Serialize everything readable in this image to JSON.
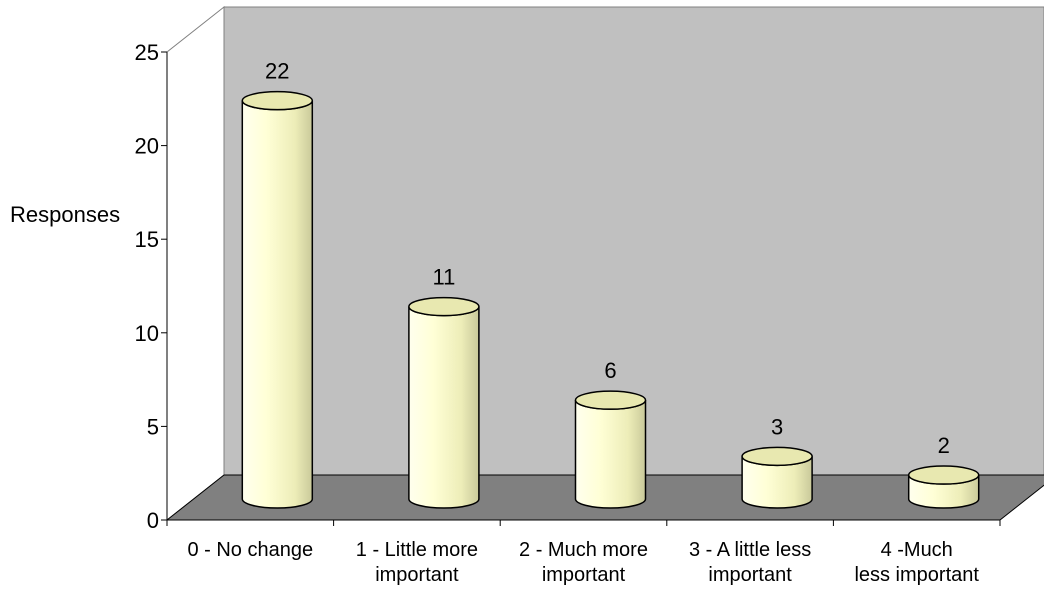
{
  "chart_data": {
    "type": "bar",
    "title": "",
    "ylabel": "Responses",
    "xlabel": "",
    "ylim": [
      0,
      25
    ],
    "yticks": [
      "0",
      "5",
      "10",
      "15",
      "20",
      "25"
    ],
    "categories": [
      [
        "0 - No change"
      ],
      [
        "1 - Little more",
        "important"
      ],
      [
        "2 - Much more",
        "important"
      ],
      [
        "3 - A little less",
        "important"
      ],
      [
        "4 -Much",
        "less important"
      ]
    ],
    "values": [
      22,
      11,
      6,
      3,
      2
    ],
    "data_labels": [
      "22",
      "11",
      "6",
      "3",
      "2"
    ],
    "grid": false,
    "legend": "none",
    "colors": {
      "bar_fill": "#FFFFCC",
      "back_wall": "#C0C0C0",
      "floor": "#808080"
    }
  }
}
